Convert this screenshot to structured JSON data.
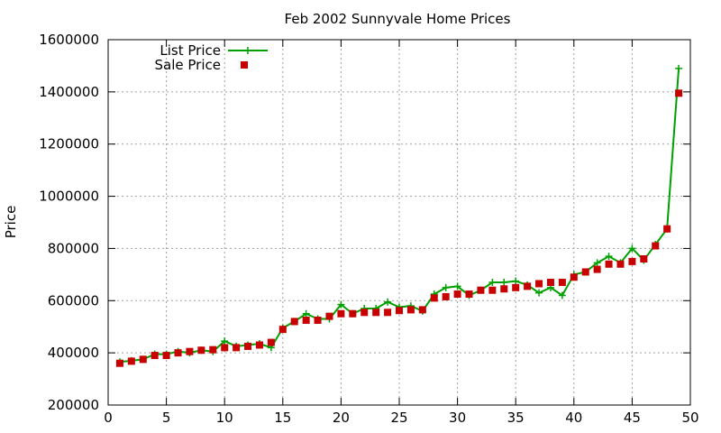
{
  "chart_data": {
    "type": "line",
    "title": "Feb 2002 Sunnyvale Home Prices",
    "xlabel": "",
    "ylabel": "Price",
    "xlim": [
      0,
      50
    ],
    "ylim": [
      200000,
      1600000
    ],
    "xticks": [
      0,
      5,
      10,
      15,
      20,
      25,
      30,
      35,
      40,
      45,
      50
    ],
    "yticks": [
      200000,
      400000,
      600000,
      800000,
      1000000,
      1200000,
      1400000,
      1600000
    ],
    "grid": true,
    "legend_position": "top-left",
    "x": [
      1,
      2,
      3,
      4,
      5,
      6,
      7,
      8,
      9,
      10,
      11,
      12,
      13,
      14,
      15,
      16,
      17,
      18,
      19,
      20,
      21,
      22,
      23,
      24,
      25,
      26,
      27,
      28,
      29,
      30,
      31,
      32,
      33,
      34,
      35,
      36,
      37,
      38,
      39,
      40,
      41,
      42,
      43,
      44,
      45,
      46,
      47,
      48,
      49
    ],
    "series": [
      {
        "name": "List Price",
        "style": "line-plus",
        "color": "#00a000",
        "values": [
          365000,
          370000,
          375000,
          395000,
          395000,
          405000,
          400000,
          410000,
          405000,
          445000,
          425000,
          430000,
          435000,
          420000,
          495000,
          520000,
          550000,
          530000,
          530000,
          585000,
          550000,
          570000,
          570000,
          595000,
          575000,
          580000,
          560000,
          625000,
          650000,
          655000,
          620000,
          640000,
          670000,
          670000,
          675000,
          660000,
          630000,
          650000,
          620000,
          700000,
          710000,
          745000,
          770000,
          745000,
          800000,
          755000,
          815000,
          875000,
          1490000
        ]
      },
      {
        "name": "Sale Price",
        "style": "square-points",
        "color": "#c80000",
        "values": [
          360000,
          368000,
          375000,
          390000,
          390000,
          400000,
          405000,
          410000,
          412000,
          420000,
          420000,
          425000,
          430000,
          440000,
          490000,
          520000,
          525000,
          525000,
          540000,
          550000,
          550000,
          555000,
          555000,
          555000,
          562000,
          565000,
          565000,
          610000,
          615000,
          625000,
          625000,
          640000,
          640000,
          645000,
          650000,
          655000,
          665000,
          670000,
          670000,
          690000,
          710000,
          720000,
          740000,
          740000,
          750000,
          760000,
          810000,
          875000,
          1395000
        ]
      }
    ]
  }
}
